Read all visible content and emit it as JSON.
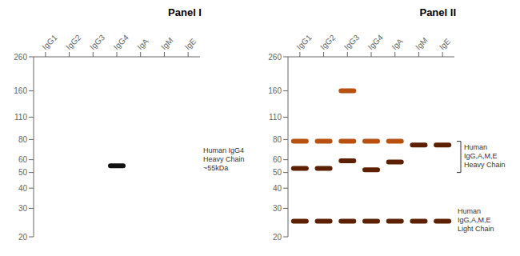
{
  "chart_data": [
    {
      "type": "scatter",
      "title": "Panel I",
      "categories": [
        "IgG1",
        "IgG2",
        "IgG3",
        "IgG4",
        "IgA",
        "IgM",
        "IgE"
      ],
      "log": "y",
      "ylim": [
        20,
        260
      ],
      "yticks": [
        260,
        160,
        110,
        80,
        60,
        50,
        40,
        30,
        20
      ],
      "grid": false,
      "series": [
        {
          "color": "#111111",
          "values": [
            null,
            null,
            null,
            55,
            null,
            null,
            null
          ]
        }
      ],
      "annotations": [
        {
          "text": "Human IgG4\nHeavy Chain\n~55kDa",
          "y": 60
        }
      ]
    },
    {
      "type": "scatter",
      "title": "Panel II",
      "categories": [
        "IgG1",
        "IgG2",
        "IgG3",
        "IgG4",
        "IgA",
        "IgM",
        "IgE"
      ],
      "log": "y",
      "ylim": [
        20,
        260
      ],
      "yticks": [
        260,
        160,
        110,
        80,
        60,
        50,
        40,
        30,
        20
      ],
      "grid": false,
      "series": [
        {
          "color": "#5c2000",
          "values": [
            53,
            53,
            59,
            52,
            58,
            74,
            74
          ]
        },
        {
          "color": "#5c2000",
          "values": [
            25,
            25,
            25,
            25,
            25,
            25,
            25
          ]
        },
        {
          "color": "#b85010",
          "values": [
            null,
            null,
            160,
            null,
            null,
            null,
            null
          ]
        },
        {
          "color": "#b85010",
          "values": [
            78,
            78,
            78,
            78,
            78,
            null,
            null
          ]
        }
      ],
      "annotations": [
        {
          "text": "Human\nIgG,A,M,E\nHeavy Chain",
          "span": [
            50,
            78
          ]
        },
        {
          "text": "Human\nIgG,A,M,E\nLight Chain",
          "y": 25
        }
      ]
    }
  ]
}
